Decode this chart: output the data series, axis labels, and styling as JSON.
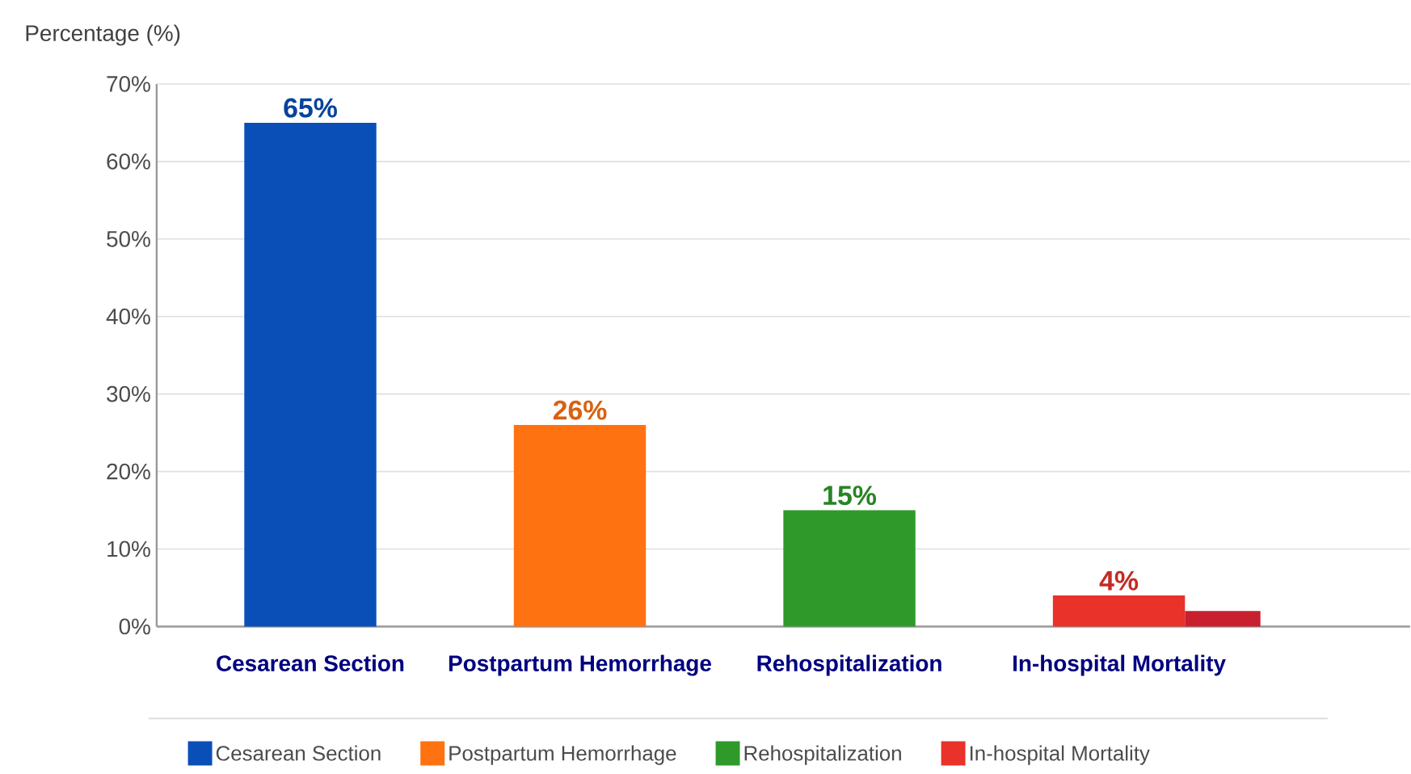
{
  "chart_data": {
    "type": "bar",
    "ylabel": "Percentage (%)",
    "categories": [
      "Cesarean Section",
      "Postpartum Hemorrhage",
      "Rehospitalization",
      "In-hospital Mortality"
    ],
    "series": [
      {
        "name": "Cesarean Section",
        "color": "#0a4fb8",
        "values": [
          65,
          null,
          null,
          null
        ],
        "value_labels": [
          "65%",
          null,
          null,
          null
        ]
      },
      {
        "name": "Postpartum Hemorrhage",
        "color": "#ff7212",
        "values": [
          null,
          26,
          null,
          null
        ],
        "value_labels": [
          null,
          "26%",
          null,
          null
        ]
      },
      {
        "name": "Rehospitalization",
        "color": "#2f9a2a",
        "values": [
          null,
          null,
          15,
          null
        ],
        "value_labels": [
          null,
          null,
          "15%",
          null
        ]
      },
      {
        "name": "In-hospital Mortality",
        "color": "#e8322a",
        "values": [
          null,
          null,
          null,
          4
        ],
        "value_labels": [
          null,
          null,
          null,
          "4%"
        ]
      },
      {
        "color": "#c8202e",
        "values": [
          null,
          null,
          null,
          2
        ]
      }
    ],
    "ylim": [
      0,
      70
    ],
    "yticks": [
      {
        "value": 0,
        "label": "0%"
      },
      {
        "value": 10,
        "label": "10%"
      },
      {
        "value": 20,
        "label": "20%"
      },
      {
        "value": 30,
        "label": "30%"
      },
      {
        "value": 40,
        "label": "40%"
      },
      {
        "value": 50,
        "label": "50%"
      },
      {
        "value": 60,
        "label": "60%"
      },
      {
        "value": 70,
        "label": "70%"
      }
    ],
    "grid": "y",
    "legend": "bottom"
  }
}
